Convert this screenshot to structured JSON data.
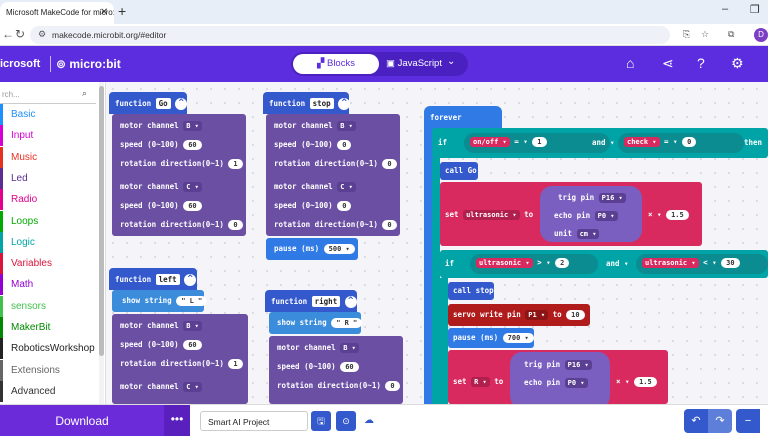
{
  "browser": {
    "tab_title": "Microsoft MakeCode for micro:b",
    "tab_close": "✕",
    "new_tab": "+",
    "url": "makecode.microbit.org/#editor",
    "profile_initial": "D",
    "minimize": "–",
    "restore": "❐",
    "back": "←",
    "forward": "→",
    "reload": "↻"
  },
  "header": {
    "brand": "icrosoft",
    "product": "micro:bit",
    "blocks_label": "Blocks",
    "javascript_label": "JavaScript",
    "dropdown": "⌄",
    "accent": "#5c2dde"
  },
  "toolbox": {
    "search_placeholder": "rch...",
    "categories": [
      {
        "label": "Basic",
        "color": "#1e90ff"
      },
      {
        "label": "Input",
        "color": "#d400d4"
      },
      {
        "label": "Music",
        "color": "#e63022"
      },
      {
        "label": "Led",
        "color": "#5c2d91"
      },
      {
        "label": "Radio",
        "color": "#e3008c"
      },
      {
        "label": "Loops",
        "color": "#00aa00"
      },
      {
        "label": "Logic",
        "color": "#00a4a6"
      },
      {
        "label": "Variables",
        "color": "#dc143c"
      },
      {
        "label": "Math",
        "color": "#9400d3"
      },
      {
        "label": "sensors",
        "color": "#40bf4a"
      },
      {
        "label": "MakerBit",
        "color": "#008800"
      },
      {
        "label": "RoboticsWorkshop",
        "color": "#222222"
      },
      {
        "label": "Extensions",
        "color": "#666666"
      },
      {
        "label": "Advanced",
        "color": "#333333"
      }
    ]
  },
  "blocks": {
    "go": {
      "keyword": "function",
      "name": "Go",
      "rows": [
        {
          "label": "motor channel",
          "dd": "B ▾"
        },
        {
          "label": "speed (0~100)",
          "val": "60"
        },
        {
          "label": "rotation direction(0~1)",
          "val": "1"
        },
        {
          "label": "motor channel",
          "dd": "C ▾"
        },
        {
          "label": "speed (0~100)",
          "val": "60"
        },
        {
          "label": "rotation direction(0~1)",
          "val": "0"
        }
      ]
    },
    "stop": {
      "keyword": "function",
      "name": "stop",
      "rows": [
        {
          "label": "motor channel",
          "dd": "B ▾"
        },
        {
          "label": "speed (0~100)",
          "val": "0"
        },
        {
          "label": "rotation direction(0~1)",
          "val": "0"
        },
        {
          "label": "motor channel",
          "dd": "C ▾"
        },
        {
          "label": "speed (0~100)",
          "val": "0"
        },
        {
          "label": "rotation direction(0~1)",
          "val": "0"
        }
      ],
      "pause_label": "pause (ms)",
      "pause_val": "500 ▾"
    },
    "left": {
      "keyword": "function",
      "name": "left",
      "show_string": "show string",
      "string_val": "\" L \"",
      "rows": [
        {
          "label": "motor channel",
          "dd": "B ▾"
        },
        {
          "label": "speed (0~100)",
          "val": "60"
        },
        {
          "label": "rotation direction(0~1)",
          "val": "1"
        },
        {
          "label": "motor channel",
          "dd": "C ▾"
        }
      ]
    },
    "right": {
      "keyword": "function",
      "name": "right",
      "show_string": "show string",
      "string_val": "\" R \"",
      "rows": [
        {
          "label": "motor channel",
          "dd": "B ▾"
        },
        {
          "label": "speed (0~100)",
          "val": "60"
        },
        {
          "label": "rotation direction(0~1)",
          "val": "0"
        }
      ]
    },
    "forever": {
      "keyword": "forever",
      "if1": {
        "if": "if",
        "var": "on/off ▾",
        "op": "= ▾",
        "val": "1",
        "and": "and ▾",
        "var2": "check ▾",
        "op2": "= ▾",
        "val2": "0",
        "then": "then"
      },
      "call_go": "call Go",
      "set_ultra": {
        "set": "set",
        "var": "ultrasonic ▾",
        "to": "to",
        "trig": "trig pin",
        "trig_pin": "P16 ▾",
        "echo": "echo pin",
        "echo_pin": "P0 ▾",
        "unit": "unit",
        "unit_val": "cm ▾",
        "mul": "× ▾",
        "factor": "1.5"
      },
      "if2": {
        "if": "if",
        "var": "ultrasonic ▾",
        "op": "> ▾",
        "val": "2",
        "and": "and ▾",
        "var2": "ultrasonic ▾",
        "op2": "< ▾",
        "val2": "30"
      },
      "call_stop": "call stop",
      "servo": {
        "label": "servo write pin",
        "pin": "P1 ▾",
        "to": "to",
        "val": "10"
      },
      "pause": {
        "label": "pause (ms)",
        "val": "700 ▾"
      },
      "set_r": {
        "set": "set",
        "var": "R ▾",
        "to": "to",
        "trig": "trig pin",
        "trig_pin": "P16 ▾",
        "echo": "echo pin",
        "echo_pin": "P0 ▾",
        "mul": "× ▾",
        "factor": "1.5"
      }
    }
  },
  "bottom": {
    "download": "Download",
    "more": "•••",
    "project_name": "Smart AI Project",
    "save_icon": "🖫",
    "github_icon": "⊙",
    "cloud_icon": "☁",
    "undo": "↶",
    "redo": "↷",
    "zoom_out": "−"
  }
}
